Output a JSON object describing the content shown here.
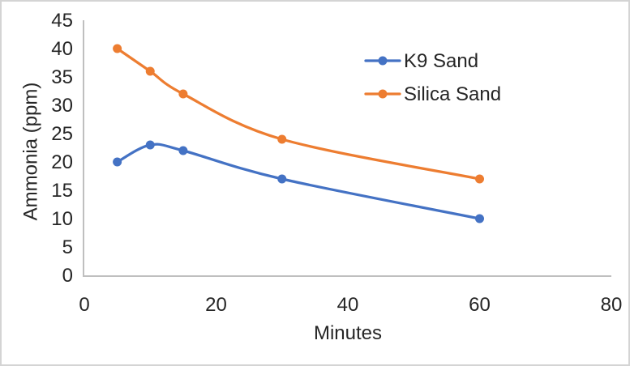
{
  "chart_data": {
    "type": "line",
    "title": "",
    "xlabel": "Minutes",
    "ylabel": "Ammonia (ppm)",
    "xlim": [
      0,
      80
    ],
    "ylim": [
      0,
      45
    ],
    "x_ticks": [
      0,
      20,
      40,
      60,
      80
    ],
    "y_ticks": [
      0,
      5,
      10,
      15,
      20,
      25,
      30,
      35,
      40,
      45
    ],
    "grid": false,
    "smooth_lines": true,
    "marker": "circle",
    "legend_position": "inside-upper-right",
    "series": [
      {
        "name": "K9 Sand",
        "color": "#4472C4",
        "x": [
          5,
          10,
          15,
          30,
          60
        ],
        "y": [
          20,
          23,
          22,
          17,
          10
        ]
      },
      {
        "name": "Silica Sand",
        "color": "#ED7D31",
        "x": [
          5,
          10,
          15,
          30,
          60
        ],
        "y": [
          40,
          36,
          32,
          24,
          17
        ]
      }
    ]
  },
  "colors": {
    "axis_line": "#BFBFBF",
    "text": "#262626",
    "frame_border": "#D4D4D4",
    "background": "#FFFFFF"
  }
}
